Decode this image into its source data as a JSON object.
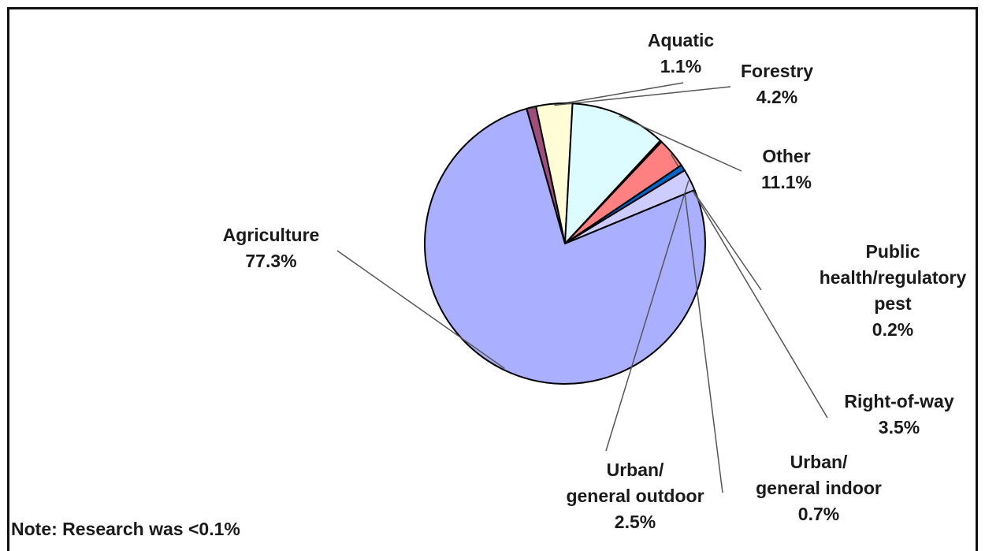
{
  "chart_data": {
    "type": "pie",
    "slices": [
      {
        "label_lines": [
          "Agriculture",
          "77.3%"
        ],
        "value": 77.3,
        "color": "#aab0ff"
      },
      {
        "label_lines": [
          "Aquatic",
          "1.1%"
        ],
        "value": 1.1,
        "color": "#a04c7c"
      },
      {
        "label_lines": [
          "Forestry",
          "4.2%"
        ],
        "value": 4.2,
        "color": "#fffcd6"
      },
      {
        "label_lines": [
          "Other",
          "11.1%"
        ],
        "value": 11.1,
        "color": "#ddfcff"
      },
      {
        "label_lines": [
          "Public",
          "health/regulatory",
          "pest",
          "0.2%"
        ],
        "value": 0.2,
        "color": "#5a1e4a"
      },
      {
        "label_lines": [
          "Right-of-way",
          "3.5%"
        ],
        "value": 3.5,
        "color": "#ff8080"
      },
      {
        "label_lines": [
          "Urban/",
          "general indoor",
          "0.7%"
        ],
        "value": 0.7,
        "color": "#0066cc"
      },
      {
        "label_lines": [
          "Urban/",
          "general outdoor",
          "2.5%"
        ],
        "value": 2.5,
        "color": "#ccccff"
      }
    ],
    "note": "Note: Research was <0.1%"
  }
}
